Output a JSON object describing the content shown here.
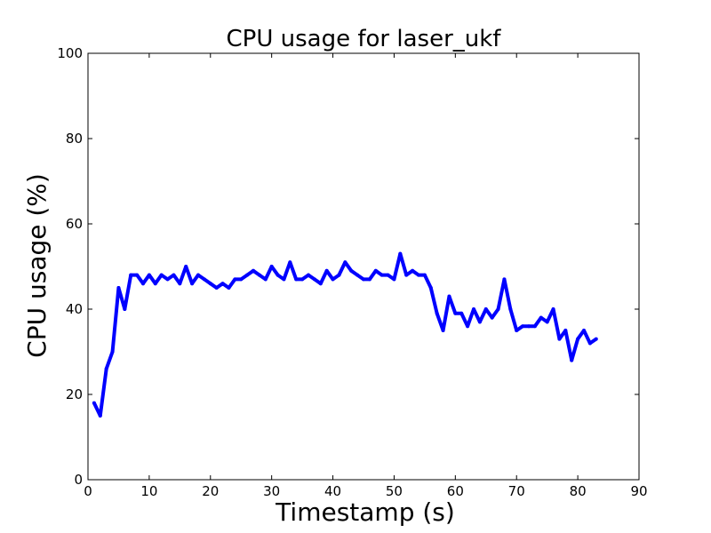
{
  "chart_data": {
    "type": "line",
    "title": "CPU usage for laser_ukf",
    "xlabel": "Timestamp (s)",
    "ylabel": "CPU usage (%)",
    "xlim": [
      0,
      90
    ],
    "ylim": [
      0,
      100
    ],
    "xticks": [
      0,
      10,
      20,
      30,
      40,
      50,
      60,
      70,
      80,
      90
    ],
    "yticks": [
      0,
      20,
      40,
      60,
      80,
      100
    ],
    "grid": false,
    "series": [
      {
        "color": "#0000ff",
        "x": [
          1,
          2,
          3,
          4,
          5,
          6,
          7,
          8,
          9,
          10,
          11,
          12,
          13,
          14,
          15,
          16,
          17,
          18,
          19,
          20,
          21,
          22,
          23,
          24,
          25,
          26,
          27,
          28,
          29,
          30,
          31,
          32,
          33,
          34,
          35,
          36,
          37,
          38,
          39,
          40,
          41,
          42,
          43,
          44,
          45,
          46,
          47,
          48,
          49,
          50,
          51,
          52,
          53,
          54,
          55,
          56,
          57,
          58,
          59,
          60,
          61,
          62,
          63,
          64,
          65,
          66,
          67,
          68,
          69,
          70,
          71,
          72,
          73,
          74,
          75,
          76,
          77,
          78,
          79,
          80,
          81,
          82,
          83
        ],
        "y": [
          18,
          15,
          26,
          30,
          45,
          40,
          48,
          48,
          46,
          48,
          46,
          48,
          47,
          48,
          46,
          50,
          46,
          48,
          47,
          46,
          45,
          46,
          45,
          47,
          47,
          48,
          49,
          48,
          47,
          50,
          48,
          47,
          51,
          47,
          47,
          48,
          47,
          46,
          49,
          47,
          48,
          51,
          49,
          48,
          47,
          47,
          49,
          48,
          48,
          47,
          53,
          48,
          49,
          48,
          48,
          45,
          39,
          35,
          43,
          39,
          39,
          36,
          40,
          37,
          40,
          38,
          40,
          47,
          40,
          35,
          36,
          36,
          36,
          38,
          37,
          40,
          33,
          35,
          28,
          33,
          35,
          32,
          33
        ]
      }
    ]
  }
}
